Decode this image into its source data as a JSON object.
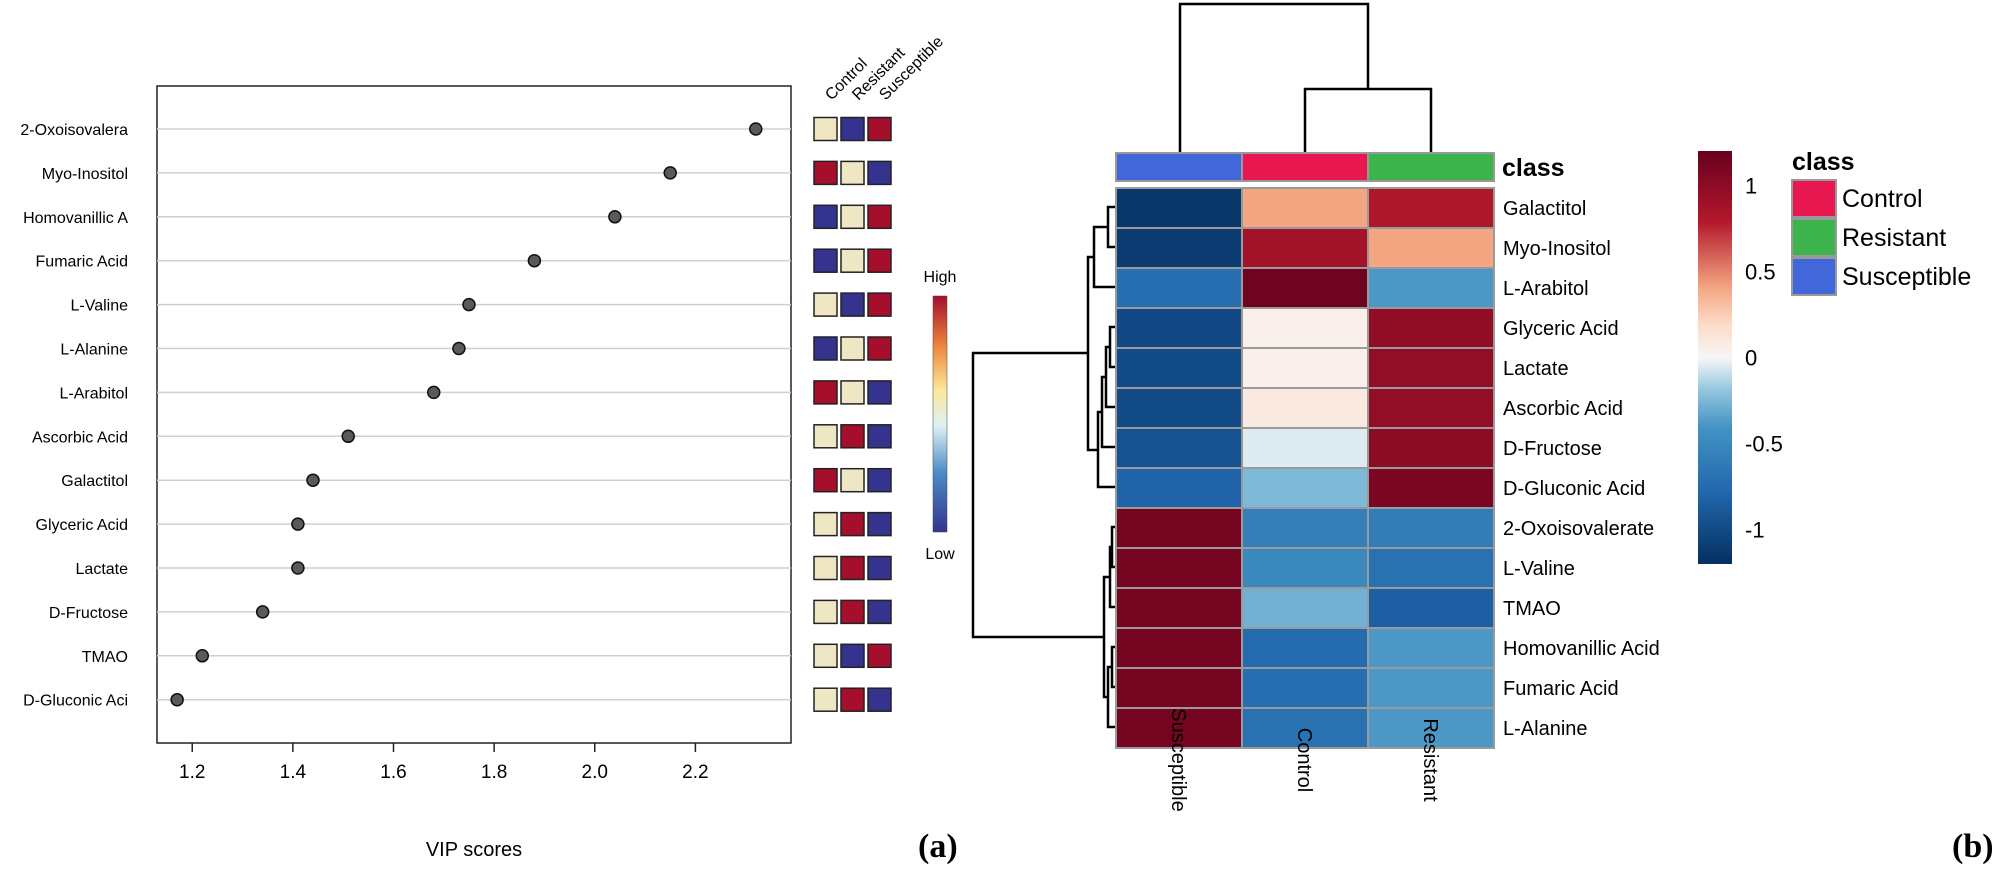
{
  "panel_a_label": "(a)",
  "panel_b_label": "(b)",
  "chart_data": [
    {
      "type": "scatter",
      "xlabel": "VIP scores",
      "xlim": [
        1.13,
        2.39
      ],
      "xticks": [
        "1.2",
        "1.4",
        "1.6",
        "1.8",
        "2.0",
        "2.2"
      ],
      "grid": "horizontal",
      "categories": [
        "2-Oxoisovalera",
        "Myo-Inositol",
        "Homovanillic A",
        "Fumaric Acid",
        "L-Valine",
        "L-Alanine",
        "L-Arabitol",
        "Ascorbic Acid",
        "Galactitol",
        "Glyceric Acid",
        "Lactate",
        "D-Fructose",
        "TMAO",
        "D-Gluconic Aci"
      ],
      "values": [
        2.32,
        2.15,
        2.04,
        1.88,
        1.75,
        1.73,
        1.68,
        1.51,
        1.44,
        1.41,
        1.41,
        1.34,
        1.22,
        1.17
      ],
      "side_heatmap": {
        "columns": [
          "Control",
          "Resistant",
          "Susceptible"
        ],
        "levels": [
          [
            "mid",
            "low",
            "high"
          ],
          [
            "high",
            "mid",
            "low"
          ],
          [
            "low",
            "mid",
            "high"
          ],
          [
            "low",
            "mid",
            "high"
          ],
          [
            "mid",
            "low",
            "high"
          ],
          [
            "low",
            "mid",
            "high"
          ],
          [
            "high",
            "mid",
            "low"
          ],
          [
            "mid",
            "high",
            "low"
          ],
          [
            "high",
            "mid",
            "low"
          ],
          [
            "mid",
            "high",
            "low"
          ],
          [
            "mid",
            "high",
            "low"
          ],
          [
            "mid",
            "high",
            "low"
          ],
          [
            "mid",
            "low",
            "high"
          ],
          [
            "mid",
            "high",
            "low"
          ]
        ],
        "colors": {
          "low": "#34348e",
          "mid": "#efe6c4",
          "high": "#a50f2c"
        },
        "legend": {
          "high": "High",
          "low": "Low"
        }
      }
    },
    {
      "type": "heatmap",
      "columns": [
        "Susceptible",
        "Control",
        "Resistant"
      ],
      "rows": [
        "Galactitol",
        "Myo-Inositol",
        "L-Arabitol",
        "Glyceric Acid",
        "Lactate",
        "Ascorbic Acid",
        "D-Fructose",
        "D-Gluconic Acid",
        "2-Oxoisovalerate",
        "L-Valine",
        "TMAO",
        "Homovanillic Acid",
        "Fumaric Acid",
        "L-Alanine"
      ],
      "values": [
        [
          -1.15,
          0.4,
          0.82
        ],
        [
          -1.12,
          0.88,
          0.4
        ],
        [
          -0.72,
          1.15,
          -0.38
        ],
        [
          -1.02,
          0.05,
          0.98
        ],
        [
          -1.0,
          0.05,
          0.97
        ],
        [
          -1.0,
          0.1,
          0.97
        ],
        [
          -0.95,
          -0.05,
          1.0
        ],
        [
          -0.82,
          -0.25,
          1.1
        ],
        [
          1.12,
          -0.58,
          -0.6
        ],
        [
          1.12,
          -0.5,
          -0.7
        ],
        [
          1.12,
          -0.28,
          -0.85
        ],
        [
          1.12,
          -0.75,
          -0.38
        ],
        [
          1.12,
          -0.72,
          -0.38
        ],
        [
          1.12,
          -0.7,
          -0.38
        ]
      ],
      "class_bar_title": "class",
      "class_colors": {
        "Control": "#e8174f",
        "Resistant": "#3cb44b",
        "Susceptible": "#4267d8"
      },
      "colorbar": {
        "ticks": [
          "1",
          "0.5",
          "0",
          "-0.5",
          "-1"
        ],
        "values": [
          1,
          0.5,
          0,
          -0.5,
          -1
        ],
        "range": [
          -1.2,
          1.2
        ]
      },
      "legend": {
        "title": "class",
        "entries": [
          "Control",
          "Resistant",
          "Susceptible"
        ]
      }
    }
  ]
}
